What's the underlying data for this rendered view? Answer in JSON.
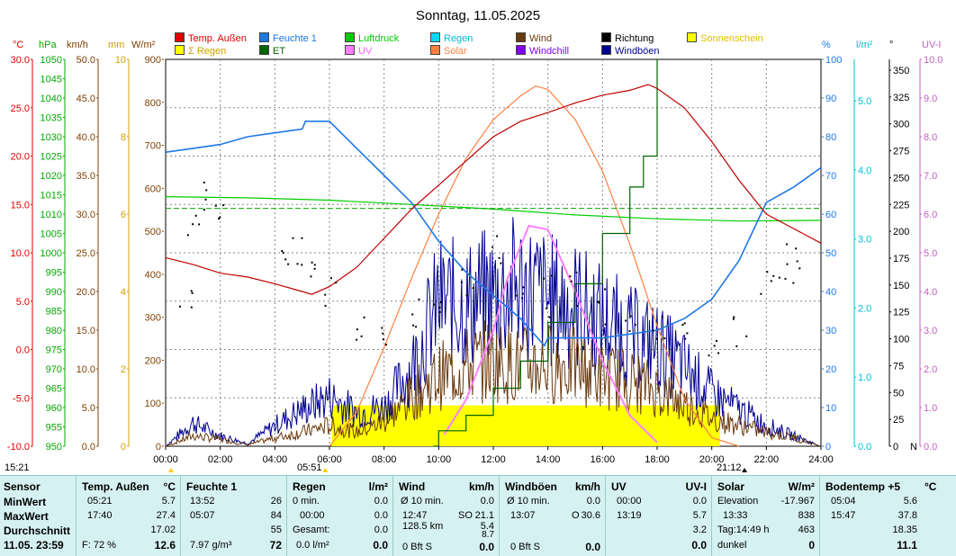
{
  "chart_data": {
    "type": "line",
    "title": "Sonntag, 11.05.2025",
    "x_ticks": [
      "00:00",
      "02:00",
      "04:00",
      "06:00",
      "08:00",
      "10:00",
      "12:00",
      "14:00",
      "16:00",
      "18:00",
      "20:00",
      "22:00",
      "24:00"
    ],
    "legend": [
      {
        "name": "Temp. Außen",
        "color": "#e00000"
      },
      {
        "name": "Feuchte 1",
        "color": "#1e78e6"
      },
      {
        "name": "Luftdruck",
        "color": "#00cc00"
      },
      {
        "name": "Regen",
        "color": "#00d8ff"
      },
      {
        "name": "Wind",
        "color": "#6b3a0e"
      },
      {
        "name": "Richtung",
        "color": "#000000"
      },
      {
        "name": "Sonnenschein",
        "color": "#ffff00"
      },
      {
        "name": "Σ Regen",
        "color": "#ffff00"
      },
      {
        "name": "ET",
        "color": "#006400"
      },
      {
        "name": "UV",
        "color": "#ff80ff"
      },
      {
        "name": "Solar",
        "color": "#ff8040"
      },
      {
        "name": "Windchill",
        "color": "#8000ff"
      },
      {
        "name": "Windböen",
        "color": "#000090"
      }
    ],
    "axes": {
      "temp": {
        "unit": "°C",
        "color": "#e00000",
        "ticks": [
          "30.0",
          "25.0",
          "20.0",
          "15.0",
          "10.0",
          "5.0",
          "0.0",
          "-5.0",
          "-10.0"
        ],
        "ylim": [
          -10,
          30
        ]
      },
      "pressure": {
        "unit": "hPa",
        "color": "#00aa00",
        "ticks": [
          "1050",
          "1045",
          "1040",
          "1035",
          "1030",
          "1025",
          "1020",
          "1015",
          "1010",
          "1005",
          "1000",
          "995",
          "990",
          "985",
          "980",
          "975",
          "970",
          "965",
          "960",
          "955",
          "950"
        ],
        "ylim": [
          950,
          1050
        ]
      },
      "wind": {
        "unit": "km/h",
        "color": "#804000",
        "ticks": [
          "50.0",
          "45.0",
          "40.0",
          "35.0",
          "30.0",
          "25.0",
          "20.0",
          "15.0",
          "10.0",
          "5.0",
          "0.0"
        ],
        "ylim": [
          0,
          50
        ]
      },
      "rain_mm": {
        "unit": "mm",
        "color": "#d0a000",
        "ticks": [
          "10",
          "8",
          "6",
          "4",
          "2",
          "0"
        ],
        "ylim": [
          0,
          10
        ]
      },
      "solar": {
        "unit": "W/m²",
        "color": "#804000",
        "ticks": [
          "900",
          "800",
          "700",
          "600",
          "500",
          "400",
          "300",
          "200",
          "100",
          "0"
        ],
        "ylim": [
          0,
          900
        ]
      },
      "humidity": {
        "unit": "%",
        "color": "#1e78e6",
        "ticks": [
          "100",
          "90",
          "80",
          "70",
          "60",
          "50",
          "40",
          "30",
          "20",
          "10",
          "0"
        ],
        "ylim": [
          0,
          100
        ]
      },
      "rain_lm2": {
        "unit": "l/m²",
        "color": "#00bcd4",
        "ticks": [
          "5.0",
          "4.0",
          "3.0",
          "2.0",
          "1.0",
          "0.0"
        ],
        "ylim": [
          0,
          5.6
        ]
      },
      "direction": {
        "unit": "°",
        "color": "#000000",
        "ticks": [
          "350",
          "325",
          "300",
          "275",
          "250",
          "225",
          "200",
          "175",
          "150",
          "125",
          "100",
          "75",
          "50",
          "25",
          "0"
        ],
        "ylim": [
          0,
          360
        ]
      },
      "uv": {
        "unit": "UV-I",
        "color": "#c060c0",
        "ticks": [
          "10.0",
          "9.0",
          "8.0",
          "7.0",
          "6.0",
          "5.0",
          "4.0",
          "3.0",
          "2.0",
          "1.0",
          "0.0"
        ],
        "ylim": [
          0,
          10
        ]
      }
    },
    "series": {
      "temp": [
        [
          0,
          9.5
        ],
        [
          1,
          8.8
        ],
        [
          2,
          7.9
        ],
        [
          3,
          7.5
        ],
        [
          4,
          6.8
        ],
        [
          5,
          6.0
        ],
        [
          5.35,
          5.7
        ],
        [
          6,
          6.5
        ],
        [
          7,
          8.5
        ],
        [
          8,
          11.5
        ],
        [
          9,
          14.5
        ],
        [
          10,
          17.0
        ],
        [
          11,
          19.5
        ],
        [
          12,
          22.0
        ],
        [
          13,
          23.6
        ],
        [
          14,
          24.5
        ],
        [
          15,
          25.5
        ],
        [
          16,
          26.3
        ],
        [
          17,
          26.8
        ],
        [
          17.67,
          27.4
        ],
        [
          18,
          27.0
        ],
        [
          19,
          25.0
        ],
        [
          20,
          21.5
        ],
        [
          21,
          17.5
        ],
        [
          22,
          14.0
        ],
        [
          23,
          12.5
        ],
        [
          24,
          11.0
        ]
      ],
      "humidity": [
        [
          0,
          76
        ],
        [
          1,
          77
        ],
        [
          2,
          78
        ],
        [
          3,
          80
        ],
        [
          4,
          81
        ],
        [
          5,
          82
        ],
        [
          5.12,
          84
        ],
        [
          6,
          84
        ],
        [
          7,
          77
        ],
        [
          8,
          70
        ],
        [
          9,
          63
        ],
        [
          10,
          53
        ],
        [
          11,
          45
        ],
        [
          12,
          39
        ],
        [
          13,
          33
        ],
        [
          13.87,
          26
        ],
        [
          14,
          28
        ],
        [
          15,
          28
        ],
        [
          16,
          28
        ],
        [
          17,
          29
        ],
        [
          18,
          30
        ],
        [
          19,
          33
        ],
        [
          20,
          38
        ],
        [
          21,
          48
        ],
        [
          22,
          63
        ],
        [
          23,
          67
        ],
        [
          24,
          72
        ]
      ],
      "pressure": [
        [
          0,
          1014.5
        ],
        [
          3,
          1014.2
        ],
        [
          6,
          1013.6
        ],
        [
          9,
          1012.5
        ],
        [
          12,
          1011.3
        ],
        [
          15,
          1009.8
        ],
        [
          18,
          1008.8
        ],
        [
          21,
          1008.2
        ],
        [
          24,
          1008.4
        ]
      ],
      "solar": [
        [
          6,
          0
        ],
        [
          7,
          80
        ],
        [
          8,
          230
        ],
        [
          9,
          390
        ],
        [
          10,
          540
        ],
        [
          11,
          670
        ],
        [
          12,
          760
        ],
        [
          13,
          815
        ],
        [
          13.55,
          838
        ],
        [
          14,
          830
        ],
        [
          15,
          760
        ],
        [
          16,
          640
        ],
        [
          17,
          470
        ],
        [
          18,
          280
        ],
        [
          19,
          110
        ],
        [
          20,
          20
        ],
        [
          21,
          0
        ]
      ],
      "uv": [
        [
          10.2,
          0.3
        ],
        [
          11,
          1.2
        ],
        [
          12,
          3.0
        ],
        [
          12.5,
          4.3
        ],
        [
          13.3,
          5.7
        ],
        [
          14,
          5.6
        ],
        [
          15,
          4.0
        ],
        [
          16,
          2.2
        ],
        [
          17,
          0.8
        ],
        [
          18,
          0.1
        ]
      ],
      "et": [
        [
          9.8,
          0
        ],
        [
          10,
          0.4
        ],
        [
          11,
          0.8
        ],
        [
          12,
          1.5
        ],
        [
          13,
          2.2
        ],
        [
          14,
          3.2
        ],
        [
          15,
          4.2
        ],
        [
          16,
          5.5
        ],
        [
          17,
          6.7
        ],
        [
          17.5,
          7.5
        ],
        [
          18,
          10
        ]
      ],
      "rain_sum_dashed": [
        [
          0,
          6.15
        ],
        [
          24,
          6.15
        ]
      ],
      "wind_avg": [
        [
          0,
          0
        ],
        [
          1,
          1.5
        ],
        [
          2,
          1.0
        ],
        [
          3,
          0.2
        ],
        [
          4,
          1.2
        ],
        [
          5,
          2.0
        ],
        [
          6,
          3.0
        ],
        [
          7,
          2.0
        ],
        [
          8,
          3.5
        ],
        [
          9,
          7.0
        ],
        [
          10,
          10.0
        ],
        [
          11,
          11.5
        ],
        [
          12,
          12.5
        ],
        [
          13,
          11.5
        ],
        [
          14,
          12.0
        ],
        [
          15,
          11.5
        ],
        [
          16,
          10.0
        ],
        [
          17,
          9.5
        ],
        [
          18,
          8.0
        ],
        [
          19,
          6.0
        ],
        [
          20,
          4.0
        ],
        [
          21,
          3.0
        ],
        [
          22,
          2.0
        ],
        [
          23,
          1.2
        ],
        [
          24,
          0
        ]
      ],
      "gust_peak": [
        [
          0,
          0
        ],
        [
          1,
          4.5
        ],
        [
          2,
          2.0
        ],
        [
          3,
          0.5
        ],
        [
          4,
          4.0
        ],
        [
          5,
          7.0
        ],
        [
          6,
          9.5
        ],
        [
          7,
          6.5
        ],
        [
          8,
          7.5
        ],
        [
          9,
          15.0
        ],
        [
          10,
          27.5
        ],
        [
          11,
          27.0
        ],
        [
          12,
          29.0
        ],
        [
          13,
          30.6
        ],
        [
          14,
          28.0
        ],
        [
          15,
          27.0
        ],
        [
          16,
          24.0
        ],
        [
          17,
          21.0
        ],
        [
          18,
          19.0
        ],
        [
          19,
          15.0
        ],
        [
          20,
          10.0
        ],
        [
          21,
          7.0
        ],
        [
          22,
          4.0
        ],
        [
          23,
          2.0
        ],
        [
          24,
          0
        ]
      ],
      "direction": [
        [
          0.7,
          150
        ],
        [
          1.0,
          215
        ],
        [
          1.5,
          230
        ],
        [
          2.0,
          225
        ],
        [
          4.3,
          185
        ],
        [
          4.8,
          175
        ],
        [
          5.5,
          165
        ],
        [
          6.0,
          145
        ],
        [
          7.0,
          115
        ],
        [
          8.0,
          110
        ],
        [
          9.0,
          120
        ],
        [
          10.0,
          135
        ],
        [
          11.0,
          150
        ],
        [
          12.0,
          185
        ],
        [
          13.0,
          155
        ],
        [
          14.0,
          140
        ],
        [
          15.0,
          150
        ],
        [
          16.0,
          130
        ],
        [
          17.0,
          110
        ],
        [
          18.0,
          120
        ],
        [
          19.0,
          115
        ],
        [
          20.0,
          105
        ],
        [
          21.0,
          110
        ],
        [
          22.0,
          160
        ],
        [
          22.5,
          170
        ],
        [
          23.0,
          170
        ]
      ]
    },
    "sunshine_blocks": [
      [
        6.1,
        10.0
      ],
      [
        10.0,
        18.3
      ],
      [
        18.3,
        20.3
      ]
    ],
    "x_markers": [
      "15:21",
      "05:51",
      "21:12"
    ]
  },
  "stats": {
    "sensor": {
      "header": "Sensor",
      "rows": [
        "MinWert",
        "MaxWert",
        "Durchschnitt"
      ],
      "footer": "11.05. 23:59"
    },
    "temp": {
      "header": "Temp. Außen",
      "unit": "°C",
      "min_time": "05:21",
      "min": "5.7",
      "max_time": "17:40",
      "max": "27.4",
      "avg": "17.02",
      "footer_label": "F: 72 %",
      "footer_value": "12.6"
    },
    "hum": {
      "header": "Feuchte 1",
      "unit": "%",
      "min_time": "13:52",
      "min": "26",
      "max_time": "05:07",
      "max": "84",
      "avg": "55",
      "footer_label": "7.97 g/m³",
      "footer_value": "72"
    },
    "rain": {
      "header": "Regen",
      "unit": "l/m²",
      "r1_label": "0 min.",
      "r1_value": "0.0",
      "r2_label": "00:00",
      "r2_value": "0.0",
      "r3_label": "Gesamt:",
      "r3_value": "0.0",
      "footer_label": "0.0 l/m²",
      "footer_value": "0.0"
    },
    "wind": {
      "header": "Wind",
      "unit": "km/h",
      "r1_label": "Ø 10 min.",
      "r1_value": "0.0",
      "r2_label": "12:47",
      "r2_dir": "SO",
      "r2_value": "21.1",
      "r3_label": "128.5 km",
      "r3_value": "5.4",
      "r4_value": "8.7",
      "footer_label": "0 Bft S",
      "footer_value": "0.0"
    },
    "gust": {
      "header": "Windböen",
      "unit": "km/h",
      "r1_label": "Ø 10 min.",
      "r1_value": "0.0",
      "r2_label": "13:07",
      "r2_dir": "O",
      "r2_value": "30.6",
      "footer_label": "0 Bft S",
      "footer_value": "0.0"
    },
    "uv": {
      "header": "UV",
      "unit": "UV-I",
      "r1_label": "00:00",
      "r1_value": "0.0",
      "r2_label": "13:19",
      "r2_value": "5.7",
      "avg": "3.2",
      "footer_value": "0.0"
    },
    "solar": {
      "header": "Solar",
      "unit": "W/m²",
      "r1_label": "Elevation",
      "r1_value": "-17.967",
      "r2_label": "13:33",
      "r2_value": "838",
      "r3_label": "Tag:14:49 h",
      "r3_value": "463",
      "footer_label": "dunkel",
      "footer_value": "0"
    },
    "soil": {
      "header": "Bodentemp +5",
      "unit": "°C",
      "r1_label": "05:04",
      "r1_value": "5.6",
      "r2_label": "15:47",
      "r2_value": "37.8",
      "avg": "18.35",
      "footer_value": "11.1"
    }
  }
}
